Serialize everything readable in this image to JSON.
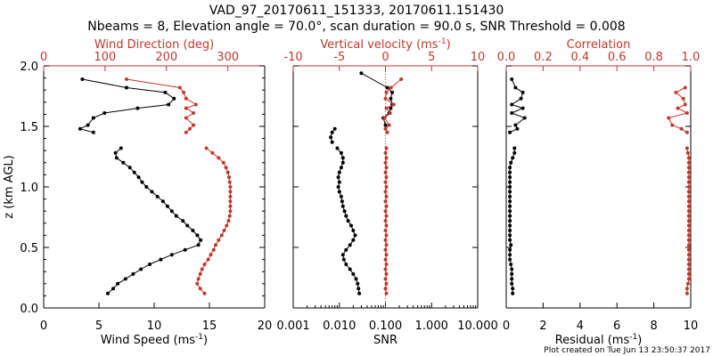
{
  "header": {
    "title_line1": "VAD_97_20170611_151333, 20170611.151430",
    "title_line2": "Nbeams = 8, Elevation angle = 70.0°, scan duration = 90.0 s, SNR Threshold = 0.008"
  },
  "footer": {
    "plot_created": "Plot created on Tue Jun 13 23:50:37 2017"
  },
  "colors": {
    "primary": "#000000",
    "secondary": "#c0392b"
  },
  "chart_data": [
    {
      "type": "line",
      "name": "wind",
      "ylabel": "z (km AGL)",
      "ylim": [
        0,
        2.0
      ],
      "yticks": [
        "0.0",
        "0.5",
        "1.0",
        "1.5",
        "2.0"
      ],
      "bottom_axis": {
        "label": "Wind Speed (ms",
        "label_exp": "-1",
        "label_tail": ")",
        "range": [
          0,
          20
        ],
        "ticks": [
          "0",
          "5",
          "10",
          "15",
          "20"
        ]
      },
      "top_axis": {
        "label": "Wind Direction (deg)",
        "range": [
          0,
          360
        ],
        "ticks": [
          "0",
          "100",
          "200",
          "300"
        ]
      },
      "series": [
        {
          "name": "Wind Speed",
          "axis": "bottom",
          "color": "#000000",
          "segments": [
            {
              "z": [
                1.89,
                1.82,
                1.78,
                1.73,
                1.68,
                1.65,
                1.61,
                1.57,
                1.51,
                1.48,
                1.45
              ],
              "values": [
                3.5,
                7.5,
                11.0,
                11.8,
                11.3,
                8.5,
                5.5,
                4.5,
                4.0,
                3.3,
                4.5
              ]
            },
            {
              "z": [
                1.32,
                1.28,
                1.24,
                1.2,
                1.16,
                1.12,
                1.08,
                1.04,
                1.0,
                0.96,
                0.92,
                0.88,
                0.84,
                0.8,
                0.76,
                0.72,
                0.68,
                0.64,
                0.6,
                0.56,
                0.52,
                0.48,
                0.44,
                0.4,
                0.36,
                0.32,
                0.28,
                0.24,
                0.2,
                0.16,
                0.12
              ],
              "values": [
                7.0,
                6.5,
                6.6,
                7.2,
                7.8,
                8.2,
                8.6,
                8.9,
                9.3,
                9.8,
                10.3,
                10.8,
                11.2,
                11.6,
                12.0,
                12.6,
                13.0,
                13.5,
                13.9,
                14.2,
                14.0,
                12.8,
                11.6,
                10.6,
                9.6,
                8.8,
                8.1,
                7.4,
                6.7,
                6.3,
                5.8
              ]
            }
          ]
        },
        {
          "name": "Wind Direction",
          "axis": "top",
          "color": "#c0392b",
          "segments": [
            {
              "z": [
                1.89,
                1.82,
                1.78,
                1.73,
                1.68,
                1.65,
                1.61,
                1.57,
                1.51,
                1.48,
                1.45
              ],
              "values": [
                135,
                222,
                228,
                232,
                248,
                232,
                244,
                232,
                244,
                238,
                232
              ]
            },
            {
              "z": [
                1.32,
                1.28,
                1.24,
                1.2,
                1.16,
                1.12,
                1.08,
                1.04,
                1.0,
                0.96,
                0.92,
                0.88,
                0.84,
                0.8,
                0.76,
                0.72,
                0.68,
                0.64,
                0.6,
                0.56,
                0.52,
                0.48,
                0.44,
                0.4,
                0.36,
                0.32,
                0.28,
                0.24,
                0.2,
                0.16,
                0.12
              ],
              "values": [
                265,
                275,
                285,
                293,
                297,
                300,
                302,
                303,
                304,
                304,
                304,
                304,
                304,
                304,
                303,
                301,
                298,
                294,
                290,
                285,
                280,
                277,
                272,
                268,
                262,
                258,
                255,
                252,
                250,
                255,
                262
              ]
            }
          ]
        }
      ]
    },
    {
      "type": "line",
      "name": "snr",
      "bottom_axis": {
        "label": "SNR",
        "scale": "log",
        "range": [
          0.001,
          10
        ],
        "ticks": [
          "0.001",
          "0.010",
          "0.100",
          "1.000",
          "10.000"
        ]
      },
      "top_axis": {
        "label": "Vertical velocity (ms",
        "label_exp": "-1",
        "label_tail": ")",
        "range": [
          -10,
          10
        ],
        "ticks": [
          "-10",
          "-5",
          "0",
          "5",
          "10"
        ]
      },
      "reference_line": {
        "axis": "top",
        "value": 0,
        "style": "dotted"
      },
      "series": [
        {
          "name": "SNR",
          "axis": "bottom",
          "color": "#000000",
          "segments": [
            {
              "z": [
                1.94,
                1.82,
                1.78,
                1.73,
                1.68,
                1.65,
                1.61,
                1.57,
                1.51
              ],
              "values": [
                0.03,
                0.11,
                0.14,
                0.13,
                0.14,
                0.13,
                0.12,
                0.09,
                0.1
              ]
            },
            {
              "z": [
                1.48,
                1.45,
                1.41,
                1.37
              ],
              "values": [
                0.008,
                0.007,
                0.0065,
                0.007
              ]
            },
            {
              "z": [
                1.32,
                1.28,
                1.24,
                1.2,
                1.16,
                1.12,
                1.08,
                1.04,
                1.0,
                0.96,
                0.92,
                0.88,
                0.84,
                0.8,
                0.76,
                0.72,
                0.68,
                0.64,
                0.6,
                0.56,
                0.52,
                0.48,
                0.44,
                0.4,
                0.36,
                0.32,
                0.28,
                0.24,
                0.2,
                0.16,
                0.12
              ],
              "values": [
                0.009,
                0.011,
                0.012,
                0.012,
                0.011,
                0.01,
                0.0095,
                0.01,
                0.0095,
                0.01,
                0.011,
                0.0115,
                0.012,
                0.013,
                0.014,
                0.0155,
                0.018,
                0.02,
                0.022,
                0.02,
                0.017,
                0.014,
                0.012,
                0.0125,
                0.014,
                0.017,
                0.02,
                0.023,
                0.025,
                0.026,
                0.027
              ]
            }
          ]
        },
        {
          "name": "Vertical velocity",
          "axis": "top",
          "color": "#c0392b",
          "segments": [
            {
              "z": [
                1.89,
                1.82,
                1.78,
                1.73,
                1.68,
                1.65,
                1.61,
                1.57,
                1.51,
                1.48,
                1.45
              ],
              "values": [
                1.7,
                0.6,
                0.1,
                0.0,
                0.9,
                0.1,
                0.5,
                -0.1,
                0.4,
                0.0,
                0.2
              ]
            },
            {
              "z": [
                1.32,
                1.28,
                1.24,
                1.2,
                1.16,
                1.12,
                1.08,
                1.04,
                1.0,
                0.96,
                0.92,
                0.88,
                0.84,
                0.8,
                0.76,
                0.72,
                0.68,
                0.64,
                0.6,
                0.56,
                0.52,
                0.48,
                0.44,
                0.4,
                0.36,
                0.32,
                0.28,
                0.24,
                0.2,
                0.16,
                0.12
              ],
              "values": [
                0.1,
                0.0,
                0.1,
                0.0,
                0.1,
                0.0,
                0.1,
                0.0,
                0.1,
                0.0,
                0.1,
                0.0,
                0.1,
                0.0,
                0.1,
                0.0,
                0.1,
                0.0,
                0.1,
                0.0,
                0.1,
                0.0,
                0.1,
                0.0,
                0.1,
                0.0,
                0.1,
                0.0,
                0.1,
                0.0,
                0.1
              ]
            }
          ]
        }
      ]
    },
    {
      "type": "line",
      "name": "correlation",
      "bottom_axis": {
        "label": "Residual (ms",
        "label_exp": "-1",
        "label_tail": ")",
        "range": [
          0,
          10
        ],
        "ticks": [
          "0",
          "2",
          "4",
          "6",
          "8",
          "10"
        ]
      },
      "top_axis": {
        "label": "Correlation",
        "range": [
          0,
          1.0
        ],
        "ticks": [
          "0.0",
          "0.2",
          "0.4",
          "0.6",
          "0.8",
          "1.0"
        ]
      },
      "series": [
        {
          "name": "Residual",
          "axis": "bottom",
          "color": "#000000",
          "segments": [
            {
              "z": [
                1.89,
                1.82,
                1.78,
                1.73,
                1.68,
                1.65,
                1.61,
                1.57,
                1.51,
                1.48,
                1.45
              ],
              "values": [
                0.3,
                0.5,
                0.9,
                0.8,
                0.3,
                0.9,
                0.3,
                1.0,
                0.5,
                0.6,
                0.2
              ]
            },
            {
              "z": [
                1.32,
                1.28,
                1.24,
                1.2,
                1.16,
                1.12,
                1.08,
                1.04,
                1.0,
                0.96,
                0.92,
                0.88,
                0.84,
                0.8,
                0.76,
                0.72,
                0.68,
                0.64,
                0.6,
                0.56,
                0.52,
                0.48,
                0.44,
                0.4,
                0.36,
                0.32,
                0.28,
                0.24,
                0.2,
                0.16,
                0.12
              ],
              "values": [
                0.45,
                0.45,
                0.35,
                0.25,
                0.2,
                0.2,
                0.2,
                0.2,
                0.2,
                0.2,
                0.2,
                0.2,
                0.2,
                0.2,
                0.2,
                0.2,
                0.2,
                0.2,
                0.2,
                0.2,
                0.25,
                0.2,
                0.2,
                0.2,
                0.25,
                0.3,
                0.3,
                0.3,
                0.3,
                0.35,
                0.35
              ]
            }
          ]
        },
        {
          "name": "Correlation",
          "axis": "top",
          "color": "#c0392b",
          "segments": [
            {
              "z": [
                1.82,
                1.78,
                1.73,
                1.68,
                1.65,
                1.61,
                1.57,
                1.51,
                1.48,
                1.45
              ],
              "values": [
                0.97,
                0.92,
                0.96,
                0.97,
                0.93,
                0.98,
                0.88,
                0.9,
                0.95,
                0.98
              ]
            },
            {
              "z": [
                1.32,
                1.28,
                1.24,
                1.2,
                1.16,
                1.12,
                1.08,
                1.04,
                1.0,
                0.96,
                0.92,
                0.88,
                0.84,
                0.8,
                0.76,
                0.72,
                0.68,
                0.64,
                0.6,
                0.56,
                0.52,
                0.48,
                0.44,
                0.4,
                0.36,
                0.32,
                0.28,
                0.24,
                0.2,
                0.16,
                0.12
              ],
              "values": [
                0.98,
                0.985,
                0.99,
                0.99,
                0.99,
                0.99,
                0.99,
                0.99,
                0.99,
                0.99,
                0.99,
                0.99,
                0.99,
                0.99,
                0.99,
                0.99,
                0.99,
                0.99,
                0.99,
                0.99,
                0.99,
                0.99,
                0.99,
                0.99,
                0.99,
                0.99,
                0.99,
                0.99,
                0.985,
                0.98,
                0.98
              ]
            }
          ]
        }
      ]
    }
  ]
}
